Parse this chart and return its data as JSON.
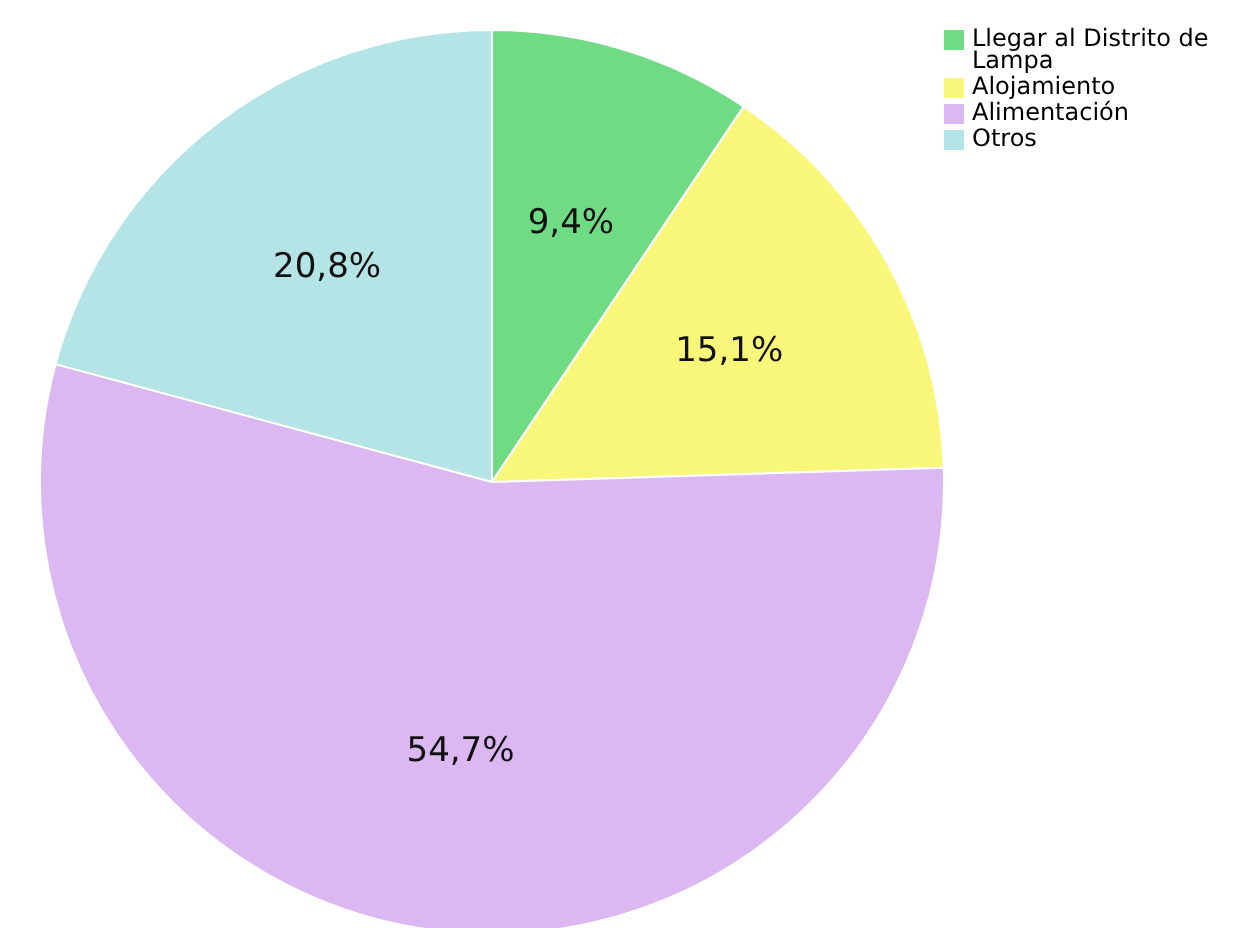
{
  "chart_data": {
    "type": "pie",
    "categories": [
      "Llegar al Distrito de Lampa",
      "Alojamiento",
      "Alimentación",
      "Otros"
    ],
    "values": [
      9.4,
      15.1,
      54.7,
      20.8
    ],
    "value_labels": [
      "9,4%",
      "15,1%",
      "54,7%",
      "20,8%"
    ],
    "colors": [
      "#6fdc85",
      "#f9f77a",
      "#dcb8f2",
      "#b4e4e6"
    ],
    "legend": "top right"
  }
}
